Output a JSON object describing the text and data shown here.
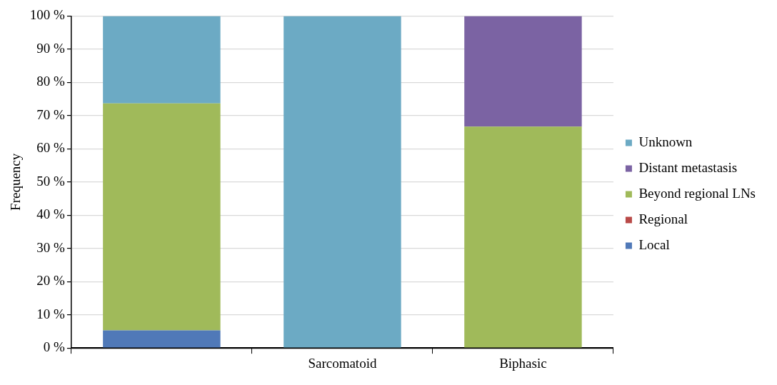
{
  "chart_data": {
    "type": "bar",
    "stacked": true,
    "ylabel": "Frequency",
    "categories": [
      null,
      "Sarcomatoid",
      "Biphasic"
    ],
    "series": [
      {
        "name": "Local",
        "color": "#5079b8",
        "values": [
          5.3,
          0,
          0
        ]
      },
      {
        "name": "Regional",
        "color": "#b94a48",
        "values": [
          0,
          0,
          0
        ]
      },
      {
        "name": "Beyond regional LNs",
        "color": "#a0ba5a",
        "values": [
          68.4,
          0,
          66.7
        ]
      },
      {
        "name": "Distant metastasis",
        "color": "#7b63a3",
        "values": [
          0,
          0,
          33.3
        ]
      },
      {
        "name": "Unknown",
        "color": "#6caac4",
        "values": [
          26.3,
          100,
          0
        ]
      }
    ],
    "ylim": [
      0,
      100
    ],
    "yticks": [
      {
        "value": 0,
        "label": "0 %"
      },
      {
        "value": 10,
        "label": "10 %"
      },
      {
        "value": 20,
        "label": "20 %"
      },
      {
        "value": 30,
        "label": "30 %"
      },
      {
        "value": 40,
        "label": "40 %"
      },
      {
        "value": 50,
        "label": "50 %"
      },
      {
        "value": 60,
        "label": "60 %"
      },
      {
        "value": 70,
        "label": "70 %"
      },
      {
        "value": 80,
        "label": "80 %"
      },
      {
        "value": 90,
        "label": "90 %"
      },
      {
        "value": 100,
        "label": "100 %"
      }
    ],
    "grid": "y",
    "legend": "right"
  }
}
